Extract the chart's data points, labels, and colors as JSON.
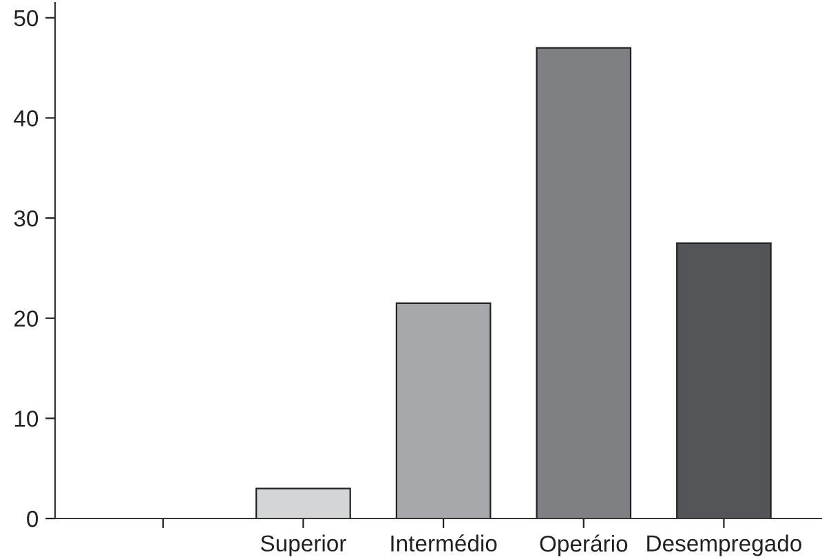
{
  "chart_data": {
    "type": "bar",
    "categories": [
      null,
      "Superior",
      "Intermédio",
      "Operário",
      "Desempregado"
    ],
    "values": [
      null,
      3,
      21.5,
      47,
      27.5
    ],
    "colors": [
      "#ffffff",
      "#d4d5d7",
      "#a7a8ac",
      "#7f8083",
      "#545559"
    ],
    "ylim": [
      0,
      51.5
    ],
    "yticks": [
      0,
      10,
      20,
      30,
      40,
      50
    ],
    "grid": false,
    "legend": false
  }
}
